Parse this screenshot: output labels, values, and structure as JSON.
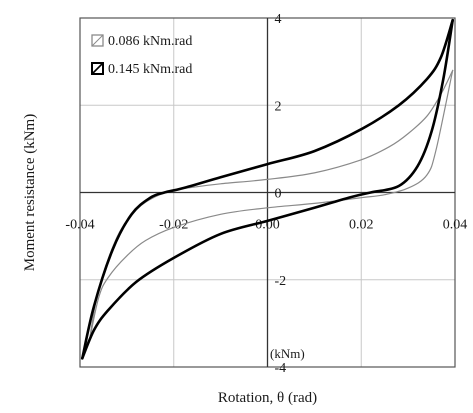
{
  "chart_data": {
    "type": "line",
    "xlabel": "Rotation, θ (rad)",
    "ylabel": "Moment resistance (kNm)",
    "unit_note": "(kNm)",
    "xlim": [
      -0.04,
      0.04
    ],
    "ylim": [
      -4,
      4
    ],
    "x_ticks": [
      -0.04,
      -0.02,
      0.0,
      0.02,
      0.04
    ],
    "x_tick_labels": [
      "-0.04",
      "-0.02",
      "0.00",
      "0.02",
      "0.04"
    ],
    "y_ticks": [
      -4,
      -2,
      0,
      2,
      4
    ],
    "y_tick_labels": [
      "-4",
      "-2",
      "0",
      "2",
      "4"
    ],
    "grid": true,
    "legend_position": "top-left",
    "series": [
      {
        "name": "0.086 kNm.rad",
        "color": "#8a8a8a",
        "upper_branch": [
          [
            -0.038,
            -3.4
          ],
          [
            -0.036,
            -2.2
          ],
          [
            -0.032,
            -1.0
          ],
          [
            -0.028,
            -0.4
          ],
          [
            -0.024,
            -0.1
          ],
          [
            -0.02,
            0.05
          ],
          [
            -0.016,
            0.12
          ],
          [
            -0.01,
            0.2
          ],
          [
            0.0,
            0.3
          ],
          [
            0.01,
            0.45
          ],
          [
            0.02,
            0.75
          ],
          [
            0.026,
            1.05
          ],
          [
            0.03,
            1.35
          ],
          [
            0.034,
            1.75
          ],
          [
            0.037,
            2.25
          ],
          [
            0.0395,
            2.8
          ]
        ],
        "lower_branch": [
          [
            0.0395,
            2.8
          ],
          [
            0.036,
            1.0
          ],
          [
            0.034,
            0.4
          ],
          [
            0.03,
            0.1
          ],
          [
            0.025,
            -0.05
          ],
          [
            0.02,
            -0.12
          ],
          [
            0.01,
            -0.25
          ],
          [
            0.0,
            -0.35
          ],
          [
            -0.01,
            -0.5
          ],
          [
            -0.02,
            -0.8
          ],
          [
            -0.026,
            -1.1
          ],
          [
            -0.03,
            -1.45
          ],
          [
            -0.034,
            -1.95
          ],
          [
            -0.036,
            -2.4
          ],
          [
            -0.038,
            -3.4
          ]
        ]
      },
      {
        "name": "0.145 kNm.rad",
        "color": "#000000",
        "upper_branch": [
          [
            -0.0395,
            -3.8
          ],
          [
            -0.037,
            -2.6
          ],
          [
            -0.033,
            -1.3
          ],
          [
            -0.029,
            -0.5
          ],
          [
            -0.025,
            -0.12
          ],
          [
            -0.022,
            0.0
          ],
          [
            -0.018,
            0.1
          ],
          [
            -0.01,
            0.35
          ],
          [
            0.0,
            0.65
          ],
          [
            0.01,
            0.95
          ],
          [
            0.02,
            1.45
          ],
          [
            0.028,
            2.0
          ],
          [
            0.034,
            2.6
          ],
          [
            0.037,
            3.1
          ],
          [
            0.0395,
            3.95
          ]
        ],
        "lower_branch": [
          [
            0.0395,
            3.95
          ],
          [
            0.0375,
            2.6
          ],
          [
            0.035,
            1.4
          ],
          [
            0.032,
            0.6
          ],
          [
            0.028,
            0.15
          ],
          [
            0.022,
            0.0
          ],
          [
            0.018,
            -0.1
          ],
          [
            0.01,
            -0.35
          ],
          [
            0.0,
            -0.65
          ],
          [
            -0.01,
            -0.95
          ],
          [
            -0.02,
            -1.5
          ],
          [
            -0.028,
            -2.05
          ],
          [
            -0.034,
            -2.7
          ],
          [
            -0.037,
            -3.15
          ],
          [
            -0.0395,
            -3.8
          ]
        ]
      }
    ]
  }
}
